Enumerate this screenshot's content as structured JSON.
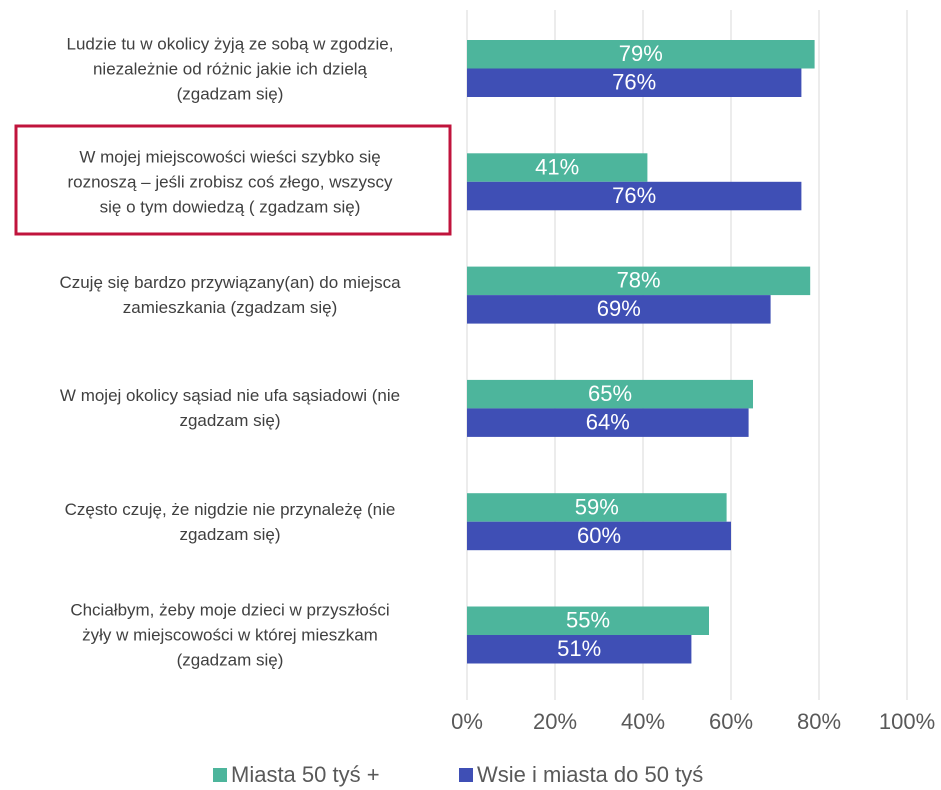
{
  "chart_data": {
    "type": "barh",
    "categories": [
      "Ludzie tu w okolicy żyją ze sobą w zgodzie,\nniezależnie od różnic jakie ich dzielą\n(zgadzam się)",
      "W mojej miejscowości wieści szybko się\nroznoszą – jeśli zrobisz coś złego, wszyscy\nsię o tym dowiedzą ( zgadzam się)",
      "Czuję się bardzo przywiązany(an) do miejsca\nzamieszkania (zgadzam się)",
      "W mojej okolicy sąsiad nie ufa sąsiadowi (nie\nzgadzam się)",
      "Często czuję, że nigdzie nie przynależę (nie\nzgadzam się)",
      "Chciałbym, żeby moje dzieci w przyszłości\nżyły w miejscowości w której mieszkam\n(zgadzam się)"
    ],
    "series": [
      {
        "name": "Miasta 50 tyś +",
        "color": "#4db59c",
        "values": [
          79,
          41,
          78,
          65,
          59,
          55
        ],
        "value_labels": [
          "79%",
          "41%",
          "78%",
          "65%",
          "59%",
          "55%"
        ]
      },
      {
        "name": "Wsie i miasta do 50 tyś",
        "color": "#3f4fb5",
        "values": [
          76,
          76,
          69,
          64,
          60,
          51
        ],
        "value_labels": [
          "76%",
          "76%",
          "69%",
          "64%",
          "60%",
          "51%"
        ]
      }
    ],
    "xlim": [
      0,
      100
    ],
    "xticks": [
      {
        "value": 0,
        "label": "0%"
      },
      {
        "value": 20,
        "label": "20%"
      },
      {
        "value": 40,
        "label": "40%"
      },
      {
        "value": 60,
        "label": "60%"
      },
      {
        "value": 80,
        "label": "80%"
      },
      {
        "value": 100,
        "label": "100%"
      }
    ],
    "grid": true,
    "legend": "bottom"
  }
}
